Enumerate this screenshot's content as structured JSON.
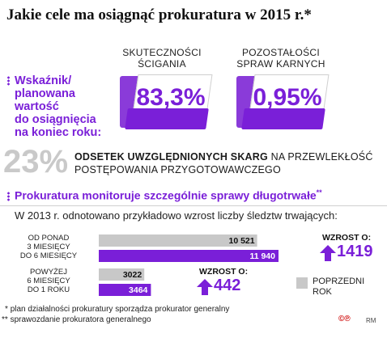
{
  "title": {
    "text": "Jakie cele ma osiągnąć prokuratura w 2015 r.",
    "mark": "*"
  },
  "indicator": {
    "lines": [
      "Wskaźnik/",
      "planowana",
      "wartość",
      "do osiągnięcia",
      "na koniec roku:"
    ]
  },
  "folders": [
    {
      "label_lines": [
        "SKUTECZNOŚCI",
        "ŚCIGANIA"
      ],
      "value": "83,3%"
    },
    {
      "label_lines": [
        "POZOSTAŁOŚCI",
        "SPRAW KARNYCH"
      ],
      "value": "0,95%"
    }
  ],
  "stat23": {
    "value": "23%",
    "bold": "ODSETEK UWZGLĘDNIONYCH SKARG",
    "rest_line1": " NA PRZEWLEKŁOŚĆ",
    "line2": "POSTĘPOWANIA PRZYGOTOWAWCZEGO"
  },
  "section": {
    "title": "Prokuratura monitoruje szczególnie sprawy długotrwałe",
    "mark": "**"
  },
  "intro": "W 2013 r. odnotowano przykładowo wzrost liczby śledztw trwających:",
  "chart_data": {
    "type": "bar",
    "orientation": "horizontal",
    "categories": [
      "OD PONAD 3 MIESIĘCY DO 6 MIESIĘCY",
      "POWYŻEJ 6 MIESIĘCY DO 1 ROKU"
    ],
    "category_lines": [
      [
        "OD PONAD",
        "3 MIESIĘCY",
        "DO 6 MIESIĘCY"
      ],
      [
        "POWYŻEJ",
        "6 MIESIĘCY",
        "DO 1 ROKU"
      ]
    ],
    "series": [
      {
        "name": "POPRZEDNI ROK",
        "values": [
          10521,
          3022
        ],
        "labels": [
          "10 521",
          "3022"
        ],
        "color": "#c8c8c8"
      },
      {
        "values": [
          11940,
          3464
        ],
        "labels": [
          "11 940",
          "3464"
        ],
        "color": "#7a1fd8"
      }
    ],
    "growth": [
      {
        "label": "WZROST O:",
        "value": "1419"
      },
      {
        "label": "WZROST O:",
        "value": "442"
      }
    ],
    "legend": {
      "lines": [
        "POPRZEDNI",
        "ROK"
      ],
      "position": "right"
    },
    "xlim": [
      0,
      11940
    ]
  },
  "footnotes": [
    {
      "mark": "*",
      "text": "plan działalności prokuratury sporządza prokurator generalny"
    },
    {
      "mark": "**",
      "text": "sprawozdanie prokuratora generalnego"
    }
  ],
  "credits": {
    "logo": "©℗",
    "rm": "RM"
  }
}
